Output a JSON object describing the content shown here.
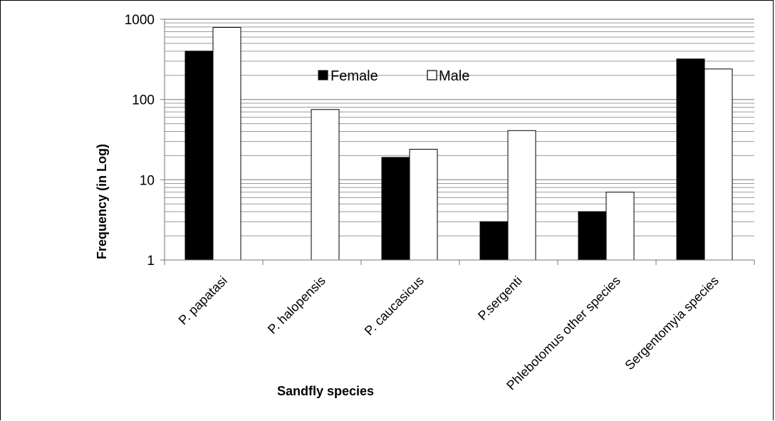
{
  "chart_data": {
    "type": "bar",
    "title": "",
    "xlabel": "Sandfly species",
    "ylabel": "Frequency (in Log)",
    "yscale": "log",
    "ylim": [
      1,
      1000
    ],
    "yticks": [
      "1",
      "10",
      "100",
      "1000"
    ],
    "grid": "horizontal major and minor log gridlines",
    "legend_position": "top-center",
    "categories": [
      "P. papatasi",
      "P. halopensis",
      "P. caucasicus",
      "P.sergenti",
      "Phlebotomus other species",
      "Sergentomyia species"
    ],
    "series": [
      {
        "name": "Female",
        "color": "#000000",
        "values": [
          400,
          null,
          19,
          3,
          4,
          320
        ]
      },
      {
        "name": "Male",
        "color": "#ffffff",
        "values": [
          790,
          75,
          24,
          41,
          7,
          240
        ]
      }
    ]
  }
}
